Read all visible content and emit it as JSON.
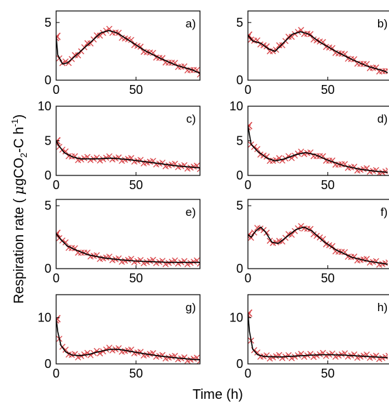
{
  "figure": {
    "ylabel_main": "Respiration rate ( ",
    "ylabel_mu": "μ",
    "ylabel_g": "gCO",
    "ylabel_sub": "2",
    "ylabel_c": "-C h",
    "ylabel_sup": "-1",
    "ylabel_close": ")",
    "xlabel": "Time (h)"
  },
  "colors": {
    "fit_line": "#000000",
    "marker": "#d9464a"
  },
  "chart_data": [
    {
      "panel": "a)",
      "type": "line",
      "xlim": [
        0,
        90
      ],
      "ylim": [
        0,
        6
      ],
      "xticks": [
        0,
        50
      ],
      "yticks": [
        0,
        5
      ],
      "fit_points": [
        [
          0,
          3.8
        ],
        [
          1,
          2.2
        ],
        [
          4,
          1.4
        ],
        [
          7,
          1.5
        ],
        [
          12,
          2.1
        ],
        [
          20,
          3.1
        ],
        [
          28,
          4.1
        ],
        [
          33,
          4.3
        ],
        [
          38,
          4.1
        ],
        [
          45,
          3.5
        ],
        [
          55,
          2.6
        ],
        [
          65,
          1.9
        ],
        [
          75,
          1.3
        ],
        [
          85,
          0.9
        ],
        [
          90,
          0.6
        ]
      ]
    },
    {
      "panel": "b)",
      "type": "line",
      "xlim": [
        0,
        90
      ],
      "ylim": [
        0,
        6
      ],
      "xticks": [
        0,
        50
      ],
      "yticks": [
        0,
        5
      ],
      "fit_points": [
        [
          0,
          3.9
        ],
        [
          3,
          3.4
        ],
        [
          8,
          3.2
        ],
        [
          13,
          2.7
        ],
        [
          17,
          2.5
        ],
        [
          22,
          3.2
        ],
        [
          28,
          4.0
        ],
        [
          33,
          4.2
        ],
        [
          38,
          4.0
        ],
        [
          45,
          3.3
        ],
        [
          55,
          2.5
        ],
        [
          65,
          1.8
        ],
        [
          75,
          1.2
        ],
        [
          85,
          0.8
        ],
        [
          90,
          0.5
        ]
      ]
    },
    {
      "panel": "c)",
      "type": "line",
      "xlim": [
        0,
        90
      ],
      "ylim": [
        0,
        10
      ],
      "xticks": [
        0,
        50
      ],
      "yticks": [
        0,
        5,
        10
      ],
      "fit_points": [
        [
          0,
          5.0
        ],
        [
          2,
          4.2
        ],
        [
          5,
          3.3
        ],
        [
          10,
          2.7
        ],
        [
          15,
          2.4
        ],
        [
          25,
          2.4
        ],
        [
          35,
          2.5
        ],
        [
          45,
          2.3
        ],
        [
          55,
          2.0
        ],
        [
          65,
          1.7
        ],
        [
          75,
          1.4
        ],
        [
          85,
          1.2
        ],
        [
          90,
          1.1
        ]
      ]
    },
    {
      "panel": "d)",
      "type": "line",
      "xlim": [
        0,
        90
      ],
      "ylim": [
        0,
        10
      ],
      "xticks": [
        0,
        50
      ],
      "yticks": [
        0,
        5,
        10
      ],
      "fit_points": [
        [
          0,
          7.2
        ],
        [
          2,
          4.5
        ],
        [
          6,
          3.5
        ],
        [
          12,
          2.5
        ],
        [
          17,
          2.1
        ],
        [
          23,
          2.4
        ],
        [
          30,
          3.0
        ],
        [
          36,
          3.3
        ],
        [
          42,
          3.0
        ],
        [
          50,
          2.2
        ],
        [
          60,
          1.4
        ],
        [
          70,
          0.9
        ],
        [
          80,
          0.6
        ],
        [
          90,
          0.4
        ]
      ]
    },
    {
      "panel": "e)",
      "type": "line",
      "xlim": [
        0,
        90
      ],
      "ylim": [
        0,
        5.5
      ],
      "xticks": [
        0,
        50
      ],
      "yticks": [
        0,
        5
      ],
      "fit_points": [
        [
          0,
          2.8
        ],
        [
          3,
          2.3
        ],
        [
          7,
          1.8
        ],
        [
          12,
          1.5
        ],
        [
          20,
          1.1
        ],
        [
          30,
          0.85
        ],
        [
          40,
          0.7
        ],
        [
          50,
          0.6
        ],
        [
          60,
          0.55
        ],
        [
          70,
          0.5
        ],
        [
          80,
          0.5
        ],
        [
          90,
          0.5
        ]
      ]
    },
    {
      "panel": "f)",
      "type": "line",
      "xlim": [
        0,
        90
      ],
      "ylim": [
        0,
        5.5
      ],
      "xticks": [
        0,
        50
      ],
      "yticks": [
        0,
        5
      ],
      "fit_points": [
        [
          0,
          2.7
        ],
        [
          2,
          2.5
        ],
        [
          5,
          3.0
        ],
        [
          8,
          3.3
        ],
        [
          11,
          2.9
        ],
        [
          15,
          2.1
        ],
        [
          19,
          2.0
        ],
        [
          24,
          2.5
        ],
        [
          30,
          3.1
        ],
        [
          35,
          3.3
        ],
        [
          40,
          3.0
        ],
        [
          47,
          2.2
        ],
        [
          55,
          1.5
        ],
        [
          65,
          0.9
        ],
        [
          75,
          0.6
        ],
        [
          85,
          0.4
        ],
        [
          90,
          0.3
        ]
      ]
    },
    {
      "panel": "g)",
      "type": "line",
      "xlim": [
        0,
        90
      ],
      "ylim": [
        0,
        15
      ],
      "xticks": [
        0,
        50
      ],
      "yticks": [
        0,
        10
      ],
      "fit_points": [
        [
          0,
          9.8
        ],
        [
          1,
          7.0
        ],
        [
          3,
          4.0
        ],
        [
          6,
          2.6
        ],
        [
          10,
          1.9
        ],
        [
          15,
          1.8
        ],
        [
          20,
          2.0
        ],
        [
          25,
          2.5
        ],
        [
          30,
          2.9
        ],
        [
          35,
          3.2
        ],
        [
          40,
          3.1
        ],
        [
          45,
          2.8
        ],
        [
          55,
          2.2
        ],
        [
          65,
          1.7
        ],
        [
          75,
          1.3
        ],
        [
          85,
          1.0
        ],
        [
          90,
          0.9
        ]
      ]
    },
    {
      "panel": "h)",
      "type": "line",
      "xlim": [
        0,
        90
      ],
      "ylim": [
        0,
        15
      ],
      "xticks": [
        0,
        50
      ],
      "yticks": [
        0,
        10
      ],
      "fit_points": [
        [
          0,
          11.0
        ],
        [
          1,
          7.0
        ],
        [
          3,
          3.2
        ],
        [
          6,
          2.0
        ],
        [
          10,
          1.6
        ],
        [
          20,
          1.5
        ],
        [
          30,
          1.7
        ],
        [
          40,
          1.9
        ],
        [
          50,
          2.0
        ],
        [
          60,
          1.9
        ],
        [
          70,
          1.7
        ],
        [
          80,
          1.5
        ],
        [
          90,
          1.3
        ]
      ]
    }
  ]
}
